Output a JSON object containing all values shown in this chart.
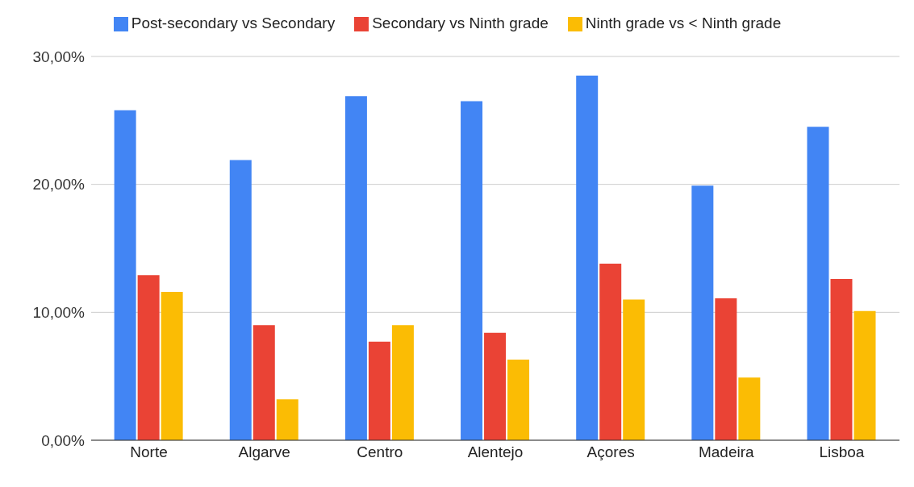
{
  "chart_data": {
    "type": "bar",
    "categories": [
      "Norte",
      "Algarve",
      "Centro",
      "Alentejo",
      "Açores",
      "Madeira",
      "Lisboa"
    ],
    "series": [
      {
        "name": "Post-secondary vs Secondary",
        "color": "#4285f4",
        "values": [
          25.8,
          21.9,
          26.9,
          26.5,
          28.5,
          19.9,
          24.5
        ]
      },
      {
        "name": "Secondary vs Ninth grade",
        "color": "#ea4335",
        "values": [
          12.9,
          9.0,
          7.7,
          8.4,
          13.8,
          11.1,
          12.6
        ]
      },
      {
        "name": "Ninth grade vs < Ninth grade",
        "color": "#fbbc04",
        "values": [
          11.6,
          3.2,
          9.0,
          6.3,
          11.0,
          4.9,
          10.1
        ]
      }
    ],
    "ylim": [
      0,
      30
    ],
    "yticks": [
      {
        "value": 0,
        "label": "0,00%"
      },
      {
        "value": 10,
        "label": "10,00%"
      },
      {
        "value": 20,
        "label": "20,00%"
      },
      {
        "value": 30,
        "label": "30,00%"
      }
    ],
    "grid": "y",
    "legend": "top"
  }
}
